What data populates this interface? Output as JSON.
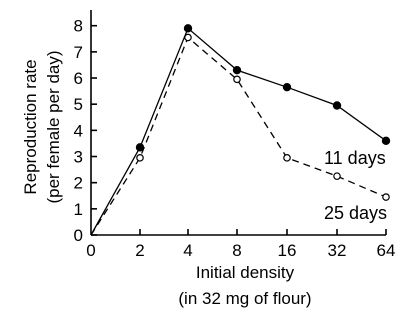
{
  "chart_data": {
    "type": "line",
    "x": [
      "0",
      "2",
      "4",
      "8",
      "16",
      "32",
      "64"
    ],
    "xlabel": [
      "Initial density",
      "(in 32 mg of flour)"
    ],
    "ylabel": [
      "Reproduction rate",
      "(per female per day)"
    ],
    "yticks": [
      "0",
      "1",
      "2",
      "3",
      "4",
      "5",
      "6",
      "7",
      "8"
    ],
    "ylim": [
      0,
      8.6
    ],
    "grid": false,
    "series": [
      {
        "name": "11 days",
        "marker": "filled-circle",
        "line_style": "solid",
        "values": [
          0,
          3.35,
          7.9,
          6.3,
          5.65,
          4.95,
          3.6
        ]
      },
      {
        "name": "25 days",
        "marker": "open-circle",
        "line_style": "dashed",
        "values": [
          0,
          2.95,
          7.55,
          5.95,
          2.95,
          2.25,
          1.45
        ]
      }
    ]
  }
}
